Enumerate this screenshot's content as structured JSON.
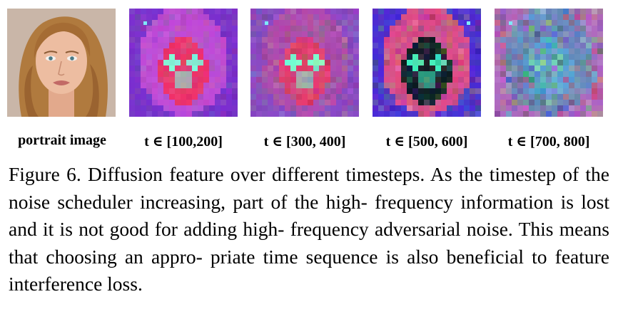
{
  "panels": [
    {
      "kind": "photo",
      "label": "portrait image"
    },
    {
      "kind": "feature",
      "label": "t ∈ [100,200]",
      "palette": {
        "bg": "#7a2fd0",
        "hair": "#c04ad8",
        "face": "#f0306a",
        "glow": "#7fffe0"
      }
    },
    {
      "kind": "feature",
      "label": "t ∈ [300, 400]",
      "palette": {
        "bg": "#8a48c8",
        "hair": "#b04ab0",
        "face": "#e83a70",
        "glow": "#7fffd0"
      }
    },
    {
      "kind": "feature",
      "label": "t ∈ [500, 600]",
      "palette": {
        "bg": "#4a2ad8",
        "hair": "#e04a8a",
        "face": "#0a1a20",
        "glow": "#3ef0c0"
      }
    },
    {
      "kind": "feature",
      "label": "t ∈ [700, 800]",
      "palette": {
        "bg": "#b06ac0",
        "hair": "#6a8ac0",
        "face": "#5aa0d8",
        "glow": "#60d0c0"
      }
    }
  ],
  "caption": {
    "line1": "Figure 6.  Diffusion feature over different timesteps.  As the",
    "line2": "timestep of the noise scheduler increasing, part of the high-",
    "line3": "frequency information is lost and it is not good for adding high-",
    "line4": "frequency adversarial noise. This means that choosing an appro-",
    "line5": "priate time sequence is also beneficial to feature interference loss."
  }
}
